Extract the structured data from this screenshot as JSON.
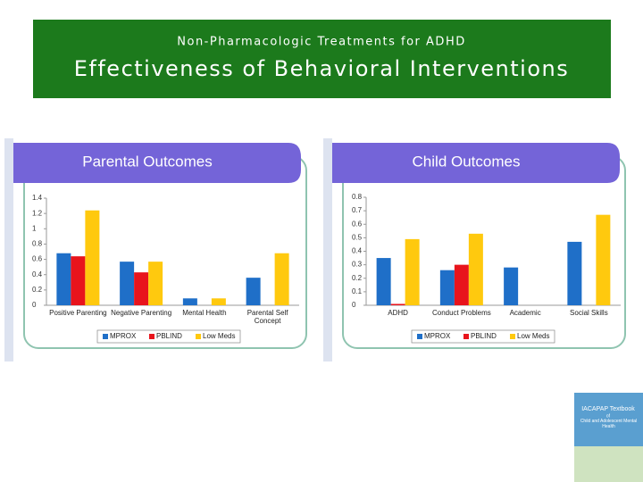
{
  "slide": {
    "subtitle": "Non-Pharmacologic Treatments for ADHD",
    "title": "Effectiveness of Behavioral Interventions"
  },
  "book": {
    "title": "IACAPAP Textbook",
    "subtitle": "of",
    "name": "Child and Adolescent Mental Health"
  },
  "chart_data": [
    {
      "type": "bar",
      "title": "Parental Outcomes",
      "categories": [
        "Positive Parenting",
        "Negative Parenting",
        "Mental Health",
        "Parental Self Concept"
      ],
      "series": [
        {
          "name": "MPROX",
          "color": "#1f6fc8",
          "values": [
            0.68,
            0.57,
            0.09,
            0.36
          ]
        },
        {
          "name": "PBLIND",
          "color": "#e8141c",
          "values": [
            0.64,
            0.43,
            null,
            null
          ]
        },
        {
          "name": "Low Meds",
          "color": "#ffc90e",
          "values": [
            1.24,
            0.57,
            0.09,
            0.68
          ]
        }
      ],
      "ylim": [
        0,
        1.4
      ],
      "yticks": [
        0,
        0.2,
        0.4,
        0.6,
        0.8,
        1,
        1.2,
        1.4
      ]
    },
    {
      "type": "bar",
      "title": "Child Outcomes",
      "categories": [
        "ADHD",
        "Conduct Problems",
        "Academic",
        "Social Skills"
      ],
      "series": [
        {
          "name": "MPROX",
          "color": "#1f6fc8",
          "values": [
            0.35,
            0.26,
            0.28,
            0.47
          ]
        },
        {
          "name": "PBLIND",
          "color": "#e8141c",
          "values": [
            0.01,
            0.3,
            null,
            null
          ]
        },
        {
          "name": "Low Meds",
          "color": "#ffc90e",
          "values": [
            0.49,
            0.53,
            null,
            0.67
          ]
        }
      ],
      "ylim": [
        0,
        0.8
      ],
      "yticks": [
        0,
        0.1,
        0.2,
        0.3,
        0.4,
        0.5,
        0.6,
        0.7,
        0.8
      ]
    }
  ]
}
